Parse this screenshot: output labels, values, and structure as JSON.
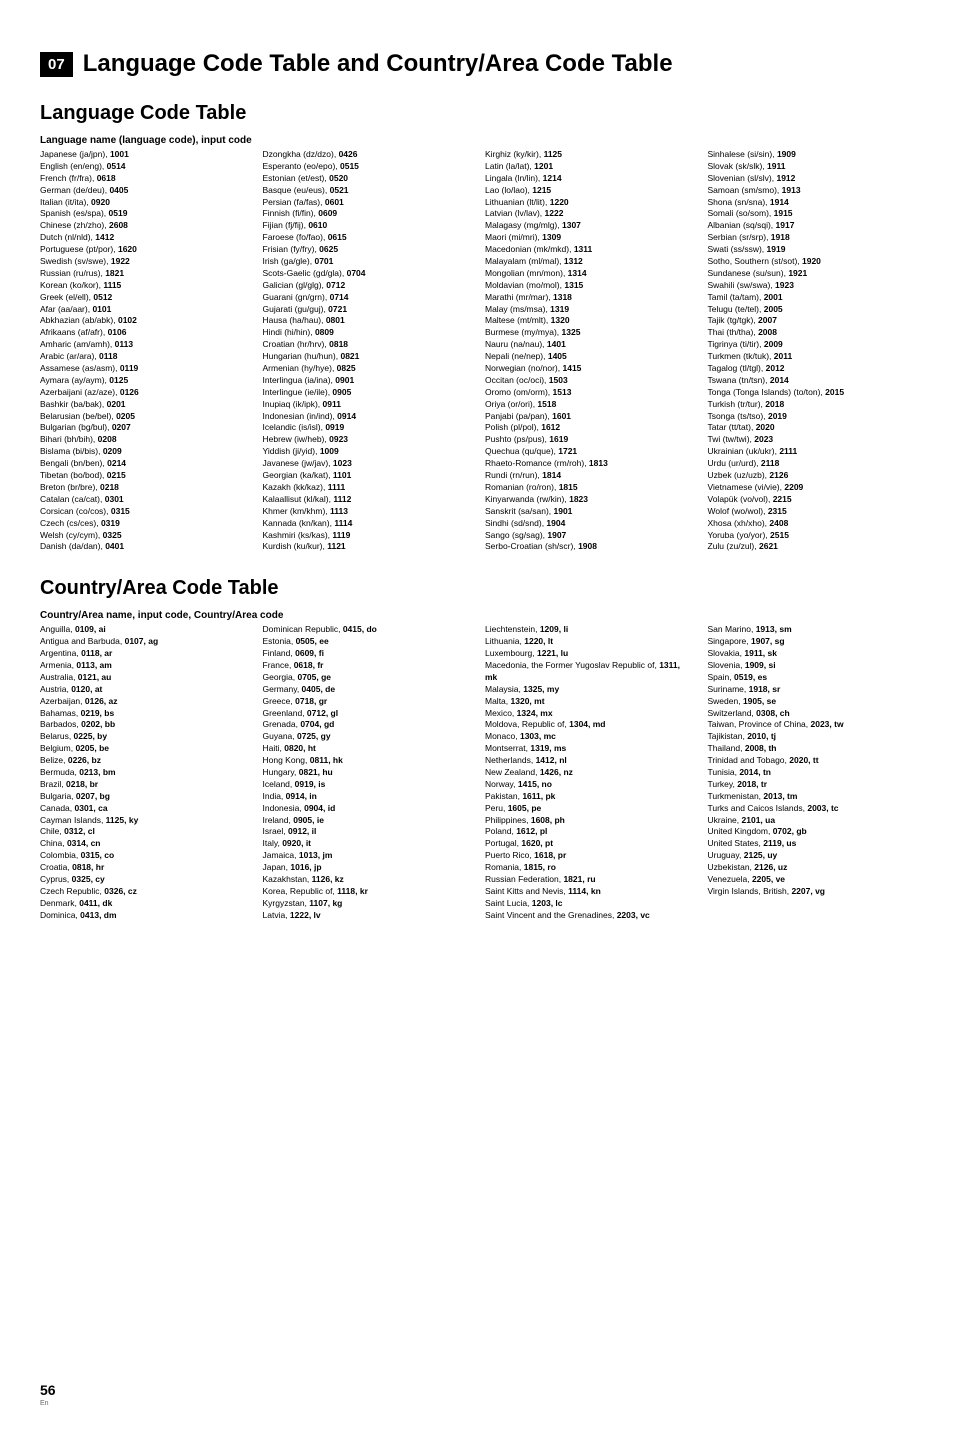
{
  "chapter": "07",
  "main_title": "Language Code Table and Country/Area Code Table",
  "lang_section_title": "Language Code Table",
  "lang_subhead": "Language name (language code), input code",
  "languages": [
    [
      "Japanese (ja/jpn)",
      "1001"
    ],
    [
      "English (en/eng)",
      "0514"
    ],
    [
      "French (fr/fra)",
      "0618"
    ],
    [
      "German (de/deu)",
      "0405"
    ],
    [
      "Italian (it/ita)",
      "0920"
    ],
    [
      "Spanish (es/spa)",
      "0519"
    ],
    [
      "Chinese (zh/zho)",
      "2608"
    ],
    [
      "Dutch (nl/nld)",
      "1412"
    ],
    [
      "Portuguese (pt/por)",
      "1620"
    ],
    [
      "Swedish (sv/swe)",
      "1922"
    ],
    [
      "Russian (ru/rus)",
      "1821"
    ],
    [
      "Korean (ko/kor)",
      "1115"
    ],
    [
      "Greek (el/ell)",
      "0512"
    ],
    [
      "Afar (aa/aar)",
      "0101"
    ],
    [
      "Abkhazian (ab/abk)",
      "0102"
    ],
    [
      "Afrikaans (af/afr)",
      "0106"
    ],
    [
      "Amharic (am/amh)",
      "0113"
    ],
    [
      "Arabic (ar/ara)",
      "0118"
    ],
    [
      "Assamese (as/asm)",
      "0119"
    ],
    [
      "Aymara (ay/aym)",
      "0125"
    ],
    [
      "Azerbaijani (az/aze)",
      "0126"
    ],
    [
      "Bashkir (ba/bak)",
      "0201"
    ],
    [
      "Belarusian (be/bel)",
      "0205"
    ],
    [
      "Bulgarian (bg/bul)",
      "0207"
    ],
    [
      "Bihari (bh/bih)",
      "0208"
    ],
    [
      "Bislama (bi/bis)",
      "0209"
    ],
    [
      "Bengali (bn/ben)",
      "0214"
    ],
    [
      "Tibetan (bo/bod)",
      "0215"
    ],
    [
      "Breton (br/bre)",
      "0218"
    ],
    [
      "Catalan (ca/cat)",
      "0301"
    ],
    [
      "Corsican (co/cos)",
      "0315"
    ],
    [
      "Czech (cs/ces)",
      "0319"
    ],
    [
      "Welsh (cy/cym)",
      "0325"
    ],
    [
      "Danish (da/dan)",
      "0401"
    ],
    [
      "Dzongkha (dz/dzo)",
      "0426"
    ],
    [
      "Esperanto (eo/epo)",
      "0515"
    ],
    [
      "Estonian (et/est)",
      "0520"
    ],
    [
      "Basque (eu/eus)",
      "0521"
    ],
    [
      "Persian (fa/fas)",
      "0601"
    ],
    [
      "Finnish (fi/fin)",
      "0609"
    ],
    [
      "Fijian (fj/fij)",
      "0610"
    ],
    [
      "Faroese (fo/fao)",
      "0615"
    ],
    [
      "Frisian (fy/fry)",
      "0625"
    ],
    [
      "Irish (ga/gle)",
      "0701"
    ],
    [
      "Scots-Gaelic (gd/gla)",
      "0704"
    ],
    [
      "Galician (gl/glg)",
      "0712"
    ],
    [
      "Guarani (gn/grn)",
      "0714"
    ],
    [
      "Gujarati (gu/guj)",
      "0721"
    ],
    [
      "Hausa (ha/hau)",
      "0801"
    ],
    [
      "Hindi (hi/hin)",
      "0809"
    ],
    [
      "Croatian (hr/hrv)",
      "0818"
    ],
    [
      "Hungarian (hu/hun)",
      "0821"
    ],
    [
      "Armenian (hy/hye)",
      "0825"
    ],
    [
      "Interlingua (ia/ina)",
      "0901"
    ],
    [
      "Interlingue (ie/ile)",
      "0905"
    ],
    [
      "Inupiaq (ik/ipk)",
      "0911"
    ],
    [
      "Indonesian (in/ind)",
      "0914"
    ],
    [
      "Icelandic (is/isl)",
      "0919"
    ],
    [
      "Hebrew (iw/heb)",
      "0923"
    ],
    [
      "Yiddish (ji/yid)",
      "1009"
    ],
    [
      "Javanese (jw/jav)",
      "1023"
    ],
    [
      "Georgian (ka/kat)",
      "1101"
    ],
    [
      "Kazakh (kk/kaz)",
      "1111"
    ],
    [
      "Kalaallisut (kl/kal)",
      "1112"
    ],
    [
      "Khmer (km/khm)",
      "1113"
    ],
    [
      "Kannada (kn/kan)",
      "1114"
    ],
    [
      "Kashmiri (ks/kas)",
      "1119"
    ],
    [
      "Kurdish (ku/kur)",
      "1121"
    ],
    [
      "Kirghiz (ky/kir)",
      "1125"
    ],
    [
      "Latin (la/lat)",
      "1201"
    ],
    [
      "Lingala (ln/lin)",
      "1214"
    ],
    [
      "Lao (lo/lao)",
      "1215"
    ],
    [
      "Lithuanian (lt/lit)",
      "1220"
    ],
    [
      "Latvian (lv/lav)",
      "1222"
    ],
    [
      "Malagasy (mg/mlg)",
      "1307"
    ],
    [
      "Maori (mi/mri)",
      "1309"
    ],
    [
      "Macedonian (mk/mkd)",
      "1311"
    ],
    [
      "Malayalam (ml/mal)",
      "1312"
    ],
    [
      "Mongolian (mn/mon)",
      "1314"
    ],
    [
      "Moldavian (mo/mol)",
      "1315"
    ],
    [
      "Marathi (mr/mar)",
      "1318"
    ],
    [
      "Malay (ms/msa)",
      "1319"
    ],
    [
      "Maltese (mt/mlt)",
      "1320"
    ],
    [
      "Burmese (my/mya)",
      "1325"
    ],
    [
      "Nauru (na/nau)",
      "1401"
    ],
    [
      "Nepali (ne/nep)",
      "1405"
    ],
    [
      "Norwegian (no/nor)",
      "1415"
    ],
    [
      "Occitan (oc/oci)",
      "1503"
    ],
    [
      "Oromo (om/orm)",
      "1513"
    ],
    [
      "Oriya (or/ori)",
      "1518"
    ],
    [
      "Panjabi (pa/pan)",
      "1601"
    ],
    [
      "Polish (pl/pol)",
      "1612"
    ],
    [
      "Pushto (ps/pus)",
      "1619"
    ],
    [
      "Quechua (qu/que)",
      "1721"
    ],
    [
      "Rhaeto-Romance (rm/roh)",
      "1813"
    ],
    [
      "Rundi (rn/run)",
      "1814"
    ],
    [
      "Romanian (ro/ron)",
      "1815"
    ],
    [
      "Kinyarwanda (rw/kin)",
      "1823"
    ],
    [
      "Sanskrit (sa/san)",
      "1901"
    ],
    [
      "Sindhi (sd/snd)",
      "1904"
    ],
    [
      "Sango (sg/sag)",
      "1907"
    ],
    [
      "Serbo-Croatian (sh/scr)",
      "1908"
    ],
    [
      "Sinhalese (si/sin)",
      "1909"
    ],
    [
      "Slovak (sk/slk)",
      "1911"
    ],
    [
      "Slovenian (sl/slv)",
      "1912"
    ],
    [
      "Samoan (sm/smo)",
      "1913"
    ],
    [
      "Shona (sn/sna)",
      "1914"
    ],
    [
      "Somali (so/som)",
      "1915"
    ],
    [
      "Albanian (sq/sqi)",
      "1917"
    ],
    [
      "Serbian (sr/srp)",
      "1918"
    ],
    [
      "Swati (ss/ssw)",
      "1919"
    ],
    [
      "Sotho, Southern (st/sot)",
      "1920"
    ],
    [
      "Sundanese (su/sun)",
      "1921"
    ],
    [
      "Swahili (sw/swa)",
      "1923"
    ],
    [
      "Tamil (ta/tam)",
      "2001"
    ],
    [
      "Telugu (te/tel)",
      "2005"
    ],
    [
      "Tajik (tg/tgk)",
      "2007"
    ],
    [
      "Thai (th/tha)",
      "2008"
    ],
    [
      "Tigrinya (ti/tir)",
      "2009"
    ],
    [
      "Turkmen (tk/tuk)",
      "2011"
    ],
    [
      "Tagalog (tl/tgl)",
      "2012"
    ],
    [
      "Tswana (tn/tsn)",
      "2014"
    ],
    [
      "Tonga (Tonga Islands) (to/ton)",
      "2015"
    ],
    [
      "Turkish (tr/tur)",
      "2018"
    ],
    [
      "Tsonga (ts/tso)",
      "2019"
    ],
    [
      "Tatar (tt/tat)",
      "2020"
    ],
    [
      "Twi (tw/twi)",
      "2023"
    ],
    [
      "Ukrainian (uk/ukr)",
      "2111"
    ],
    [
      "Urdu (ur/urd)",
      "2118"
    ],
    [
      "Uzbek (uz/uzb)",
      "2126"
    ],
    [
      "Vietnamese (vi/vie)",
      "2209"
    ],
    [
      "Volapük (vo/vol)",
      "2215"
    ],
    [
      "Wolof (wo/wol)",
      "2315"
    ],
    [
      "Xhosa (xh/xho)",
      "2408"
    ],
    [
      "Yoruba (yo/yor)",
      "2515"
    ],
    [
      "Zulu (zu/zul)",
      "2621"
    ]
  ],
  "country_section_title": "Country/Area Code Table",
  "country_subhead": "Country/Area name, input code, Country/Area code",
  "countries": [
    [
      "Anguilla",
      "0109, ai"
    ],
    [
      "Antigua and Barbuda",
      "0107, ag"
    ],
    [
      "Argentina",
      "0118, ar"
    ],
    [
      "Armenia",
      "0113, am"
    ],
    [
      "Australia",
      "0121, au"
    ],
    [
      "Austria",
      "0120, at"
    ],
    [
      "Azerbaijan",
      "0126, az"
    ],
    [
      "Bahamas",
      "0219, bs"
    ],
    [
      "Barbados",
      "0202, bb"
    ],
    [
      "Belarus",
      "0225, by"
    ],
    [
      "Belgium",
      "0205, be"
    ],
    [
      "Belize",
      "0226, bz"
    ],
    [
      "Bermuda",
      "0213, bm"
    ],
    [
      "Brazil",
      "0218, br"
    ],
    [
      "Bulgaria",
      "0207, bg"
    ],
    [
      "Canada",
      "0301, ca"
    ],
    [
      "Cayman Islands",
      "1125, ky"
    ],
    [
      "Chile",
      "0312, cl"
    ],
    [
      "China",
      "0314, cn"
    ],
    [
      "Colombia",
      "0315, co"
    ],
    [
      "Croatia",
      "0818, hr"
    ],
    [
      "Cyprus",
      "0325, cy"
    ],
    [
      "Czech Republic",
      "0326, cz"
    ],
    [
      "Denmark",
      "0411, dk"
    ],
    [
      "Dominica",
      "0413, dm"
    ],
    [
      "Dominican Republic",
      "0415, do"
    ],
    [
      "Estonia",
      "0505, ee"
    ],
    [
      "Finland",
      "0609, fi"
    ],
    [
      "France",
      "0618, fr"
    ],
    [
      "Georgia",
      "0705, ge"
    ],
    [
      "Germany",
      "0405, de"
    ],
    [
      "Greece",
      "0718, gr"
    ],
    [
      "Greenland",
      "0712, gl"
    ],
    [
      "Grenada",
      "0704, gd"
    ],
    [
      "Guyana",
      "0725, gy"
    ],
    [
      "Haiti",
      "0820, ht"
    ],
    [
      "Hong Kong",
      "0811, hk"
    ],
    [
      "Hungary",
      "0821, hu"
    ],
    [
      "Iceland",
      "0919, is"
    ],
    [
      "India",
      "0914, in"
    ],
    [
      "Indonesia",
      "0904, id"
    ],
    [
      "Ireland",
      "0905, ie"
    ],
    [
      "Israel",
      "0912, il"
    ],
    [
      "Italy",
      "0920, it"
    ],
    [
      "Jamaica",
      "1013, jm"
    ],
    [
      "Japan",
      "1016, jp"
    ],
    [
      "Kazakhstan",
      "1126, kz"
    ],
    [
      "Korea, Republic of",
      "1118, kr"
    ],
    [
      "Kyrgyzstan",
      "1107, kg"
    ],
    [
      "Latvia",
      "1222, lv"
    ],
    [
      "Liechtenstein",
      "1209, li"
    ],
    [
      "Lithuania",
      "1220, lt"
    ],
    [
      "Luxembourg",
      "1221, lu"
    ],
    [
      "Macedonia, the Former Yugoslav Republic of",
      "1311, mk"
    ],
    [
      "Malaysia",
      "1325, my"
    ],
    [
      "Malta",
      "1320, mt"
    ],
    [
      "Mexico",
      "1324, mx"
    ],
    [
      "Moldova, Republic of",
      "1304, md"
    ],
    [
      "Monaco",
      "1303, mc"
    ],
    [
      "Montserrat",
      "1319, ms"
    ],
    [
      "Netherlands",
      "1412, nl"
    ],
    [
      "New Zealand",
      "1426, nz"
    ],
    [
      "Norway",
      "1415, no"
    ],
    [
      "Pakistan",
      "1611, pk"
    ],
    [
      "Peru",
      "1605, pe"
    ],
    [
      "Philippines",
      "1608, ph"
    ],
    [
      "Poland",
      "1612, pl"
    ],
    [
      "Portugal",
      "1620, pt"
    ],
    [
      "Puerto Rico",
      "1618, pr"
    ],
    [
      "Romania",
      "1815, ro"
    ],
    [
      "Russian Federation",
      "1821, ru"
    ],
    [
      "Saint Kitts and Nevis",
      "1114, kn"
    ],
    [
      "Saint Lucia",
      "1203, lc"
    ],
    [
      "Saint Vincent and the Grenadines",
      "2203, vc"
    ],
    [
      "San Marino",
      "1913, sm"
    ],
    [
      "Singapore",
      "1907, sg"
    ],
    [
      "Slovakia",
      "1911, sk"
    ],
    [
      "Slovenia",
      "1909, si"
    ],
    [
      "Spain",
      "0519, es"
    ],
    [
      "Suriname",
      "1918, sr"
    ],
    [
      "Sweden",
      "1905, se"
    ],
    [
      "Switzerland",
      "0308, ch"
    ],
    [
      "Taiwan, Province of China",
      "2023, tw"
    ],
    [
      "Tajikistan",
      "2010, tj"
    ],
    [
      "Thailand",
      "2008, th"
    ],
    [
      "Trinidad and Tobago",
      "2020, tt"
    ],
    [
      "Tunisia",
      "2014, tn"
    ],
    [
      "Turkey",
      "2018, tr"
    ],
    [
      "Turkmenistan",
      "2013, tm"
    ],
    [
      "Turks and Caicos Islands",
      "2003, tc"
    ],
    [
      "Ukraine",
      "2101, ua"
    ],
    [
      "United Kingdom",
      "0702, gb"
    ],
    [
      "United States",
      "2119, us"
    ],
    [
      "Uruguay",
      "2125, uy"
    ],
    [
      "Uzbekistan",
      "2126, uz"
    ],
    [
      "Venezuela",
      "2205, ve"
    ],
    [
      "Virgin Islands, British",
      "2207, vg"
    ]
  ],
  "page_number": "56",
  "lang_label": "En"
}
